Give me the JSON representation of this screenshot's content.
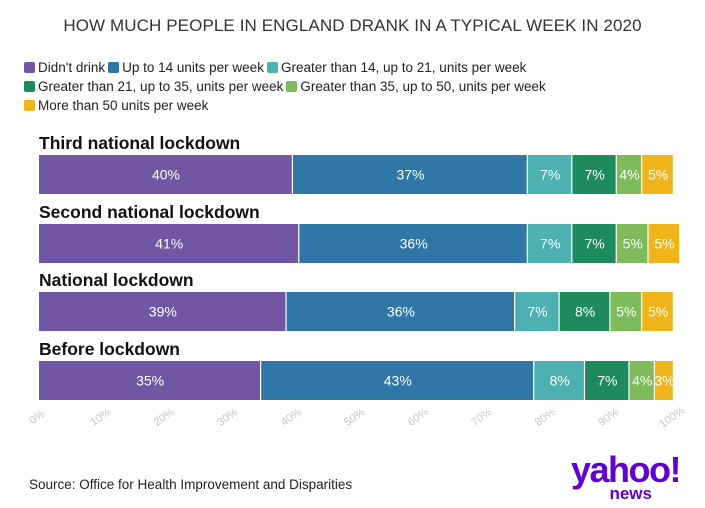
{
  "chart_data": {
    "type": "bar",
    "orientation": "horizontal",
    "stacked": true,
    "title": "HOW MUCH PEOPLE IN ENGLAND DRANK IN A TYPICAL WEEK IN 2020",
    "categories": [
      "Third national lockdown",
      "Second national lockdown",
      "National lockdown",
      "Before lockdown"
    ],
    "series": [
      {
        "name": "Didn't drink",
        "color": "#7157a3",
        "values": [
          40,
          41,
          39,
          35
        ]
      },
      {
        "name": "Up to 14 units per week",
        "color": "#2f77a6",
        "values": [
          37,
          36,
          36,
          43
        ]
      },
      {
        "name": "Greater than 14, up to 21, units per week",
        "color": "#4cb1b0",
        "values": [
          7,
          7,
          7,
          8
        ]
      },
      {
        "name": "Greater than 21, up to 35, units per week",
        "color": "#1e8b5c",
        "values": [
          7,
          7,
          8,
          7
        ]
      },
      {
        "name": "Greater than 35, up to 50, units per week",
        "color": "#7dbb5b",
        "values": [
          4,
          5,
          5,
          4
        ]
      },
      {
        "name": "More than 50 units per week",
        "color": "#f1b51c",
        "values": [
          5,
          5,
          5,
          3
        ]
      }
    ],
    "value_suffix": "%",
    "xlim": [
      0,
      100
    ],
    "x_ticks": [
      "0%",
      "10%",
      "20%",
      "30%",
      "40%",
      "50%",
      "60%",
      "70%",
      "80%",
      "90%",
      "100%"
    ],
    "legend_position": "top",
    "grid": false
  },
  "source": "Source: Office for Health Improvement and Disparities",
  "logo": {
    "main": "yahoo!",
    "sub": "news"
  }
}
